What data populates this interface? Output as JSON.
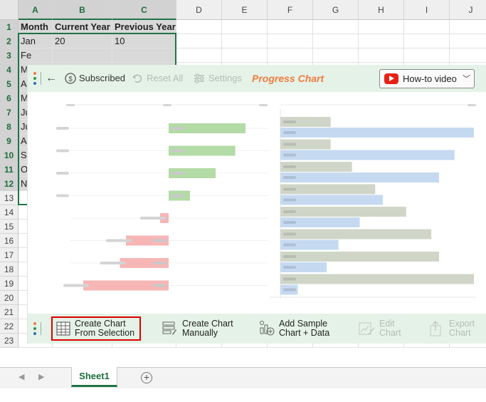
{
  "sheet": {
    "columns": [
      "A",
      "B",
      "C",
      "D",
      "E",
      "F",
      "G",
      "H",
      "I",
      "J"
    ],
    "rows": [
      "1",
      "2",
      "3",
      "4",
      "5",
      "6",
      "7",
      "8",
      "9",
      "10",
      "11",
      "12",
      "13",
      "14",
      "15",
      "16",
      "17",
      "18",
      "19",
      "20",
      "21",
      "22",
      "23"
    ],
    "cells": {
      "A1": "Month",
      "B1": "Current Year",
      "C1": "Previous Year",
      "A2": "Jan",
      "B2": "20",
      "C2": "10",
      "A3": "Fe",
      "A4": "M",
      "A5": "Ap",
      "A6": "M",
      "A7": "Ju",
      "A8": "Ju",
      "A9": "Au",
      "A10": "Se",
      "A11": "O",
      "A12": "N"
    }
  },
  "panel": {
    "subscribed_label": "Subscribed",
    "reset_label": "Reset All",
    "settings_label": "Settings",
    "title": "Progress Chart",
    "howto_label": "How-to video",
    "buttons": {
      "create_from_selection": [
        "Create Chart",
        "From Selection"
      ],
      "create_manually": [
        "Create Chart",
        "Manually"
      ],
      "add_sample": [
        "Add Sample",
        "Chart + Data"
      ],
      "edit_chart": [
        "Edit",
        "Chart"
      ],
      "export_chart": [
        "Export",
        "Chart"
      ]
    },
    "colors": {
      "accent": "#f07b3f",
      "bar_bar_green": "#b3dba6",
      "bar_red": "#f7b6b6",
      "bar_gray": "#cfd6c8",
      "bar_blue": "#c5daf0",
      "toolbar_bg": "#e5f2e7",
      "dots": [
        "#f07b3f",
        "#3a8f4d",
        "#2f6fb5"
      ]
    }
  },
  "chart_data": [
    {
      "type": "bar",
      "note_values_estimated_relative": true,
      "series": [
        {
          "values": [
            0.9,
            0.78,
            0.55,
            0.25,
            -0.1,
            -0.5,
            -0.57,
            -1.0
          ]
        }
      ]
    },
    {
      "type": "bar",
      "series": [
        {
          "values": [
            26,
            26,
            37,
            49,
            65,
            78,
            82,
            100
          ]
        },
        {
          "values": [
            100,
            90,
            82,
            53,
            41,
            30,
            24,
            9
          ]
        }
      ]
    }
  ],
  "tabs": {
    "sheet_name": "Sheet1",
    "add_symbol": "+",
    "prev_symbol": "◀",
    "next_symbol": "▶"
  }
}
